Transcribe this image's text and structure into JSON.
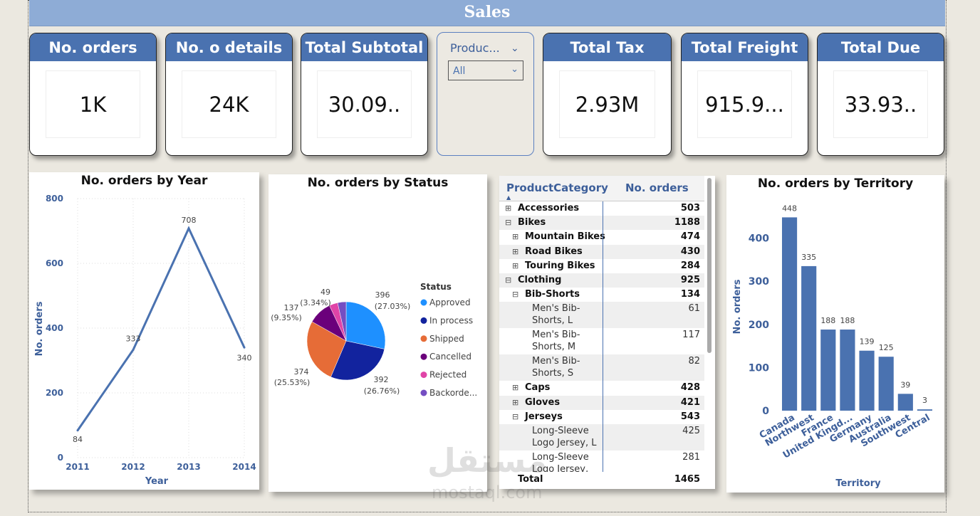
{
  "header": {
    "title": "Sales"
  },
  "kpis": [
    {
      "label": "No. orders",
      "value": "1K"
    },
    {
      "label": "No. o details",
      "value": "24K"
    },
    {
      "label": "Total Subtotal",
      "value": "30.09.."
    },
    {
      "label": "Total Tax",
      "value": "2.93M"
    },
    {
      "label": "Total Freight",
      "value": "915.9..."
    },
    {
      "label": "Total Due",
      "value": "33.93.."
    }
  ],
  "slicer": {
    "title": "Produc...",
    "selected": "All"
  },
  "table": {
    "col1": "ProductCategory",
    "col2": "No. orders",
    "rows": [
      {
        "expander": "⊞",
        "label": "Accessories",
        "value": "503",
        "level": 0
      },
      {
        "expander": "⊟",
        "label": "Bikes",
        "value": "1188",
        "level": 0
      },
      {
        "expander": "⊞",
        "label": "Mountain Bikes",
        "value": "474",
        "level": 1
      },
      {
        "expander": "⊞",
        "label": "Road Bikes",
        "value": "430",
        "level": 1
      },
      {
        "expander": "⊞",
        "label": "Touring Bikes",
        "value": "284",
        "level": 1
      },
      {
        "expander": "⊟",
        "label": "Clothing",
        "value": "925",
        "level": 0
      },
      {
        "expander": "⊟",
        "label": "Bib-Shorts",
        "value": "134",
        "level": 1
      },
      {
        "expander": "",
        "label": "Men's Bib-Shorts, L",
        "value": "61",
        "level": 2
      },
      {
        "expander": "",
        "label": "Men's Bib-Shorts, M",
        "value": "117",
        "level": 2
      },
      {
        "expander": "",
        "label": "Men's Bib-Shorts, S",
        "value": "82",
        "level": 2
      },
      {
        "expander": "⊞",
        "label": "Caps",
        "value": "428",
        "level": 1
      },
      {
        "expander": "⊞",
        "label": "Gloves",
        "value": "421",
        "level": 1
      },
      {
        "expander": "⊟",
        "label": "Jerseys",
        "value": "543",
        "level": 1
      },
      {
        "expander": "",
        "label": "Long-Sleeve Logo Jersey, L",
        "value": "425",
        "level": 2
      },
      {
        "expander": "",
        "label": "Long-Sleeve Logo Jersey, M",
        "value": "281",
        "level": 2
      }
    ],
    "total_label": "Total",
    "total_value": "1465"
  },
  "watermark": {
    "line1": "مستقل",
    "line2": "mostaql.com"
  },
  "chart_data": [
    {
      "type": "line",
      "title": "No. orders by Year",
      "xlabel": "Year",
      "ylabel": "No. orders",
      "x": [
        "2011",
        "2012",
        "2013",
        "2014"
      ],
      "values": [
        84,
        333,
        708,
        340
      ],
      "data_labels": [
        "84",
        "333",
        "708",
        "340"
      ],
      "ylim": [
        0,
        800
      ],
      "yticks": [
        "0",
        "200",
        "400",
        "600",
        "800"
      ],
      "grid": true,
      "color": "#4a72b0"
    },
    {
      "type": "pie",
      "title": "No. orders by Status",
      "legend_title": "Status",
      "legend_position": "right",
      "slices": [
        {
          "name": "Approved",
          "value": 396,
          "label": "396",
          "pct": "(27.03%)",
          "color": "#1e90ff"
        },
        {
          "name": "In process",
          "value": 392,
          "label": "392",
          "pct": "(26.76%)",
          "color": "#12239e"
        },
        {
          "name": "Shipped",
          "value": 374,
          "label": "374",
          "pct": "(25.53%)",
          "color": "#e66c37"
        },
        {
          "name": "Cancelled",
          "value": 137,
          "label": "137",
          "pct": "(9.35%)",
          "color": "#6b007b"
        },
        {
          "name": "Rejected",
          "value": 49,
          "label": "49",
          "pct": "(3.34%)",
          "color": "#e044a7"
        },
        {
          "name": "Backorde...",
          "value": 49,
          "label": "",
          "pct": "",
          "color": "#744ec2"
        }
      ]
    },
    {
      "type": "bar",
      "title": "No. orders by Territory",
      "xlabel": "Territory",
      "ylabel": "No. orders",
      "categories": [
        "Canada",
        "Northwest",
        "France",
        "United Kingd...",
        "Germany",
        "Australia",
        "Southwest",
        "Central"
      ],
      "values": [
        448,
        335,
        188,
        188,
        139,
        125,
        39,
        3
      ],
      "data_labels": [
        "448",
        "335",
        "188",
        "188",
        "139",
        "125",
        "39",
        "3"
      ],
      "ylim": [
        0,
        480
      ],
      "yticks": [
        "0",
        "100",
        "200",
        "300",
        "400"
      ],
      "color": "#4a72b0"
    }
  ]
}
